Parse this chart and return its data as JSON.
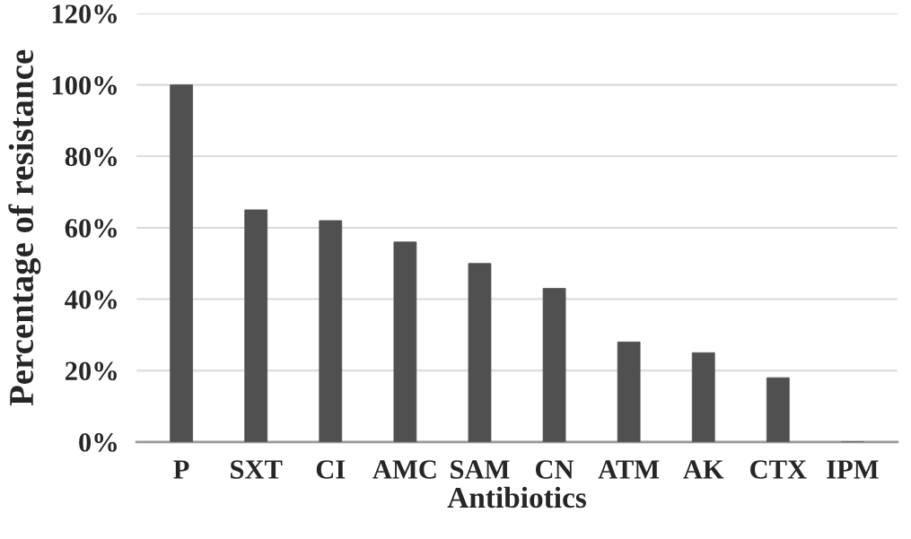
{
  "chart_data": {
    "type": "bar",
    "xlabel": "Antibiotics",
    "ylabel": "Percentage of resistance",
    "categories": [
      "P",
      "SXT",
      "CI",
      "AMC",
      "SAM",
      "CN",
      "ATM",
      "AK",
      "CTX",
      "IPM"
    ],
    "values": [
      100,
      65,
      62,
      56,
      50,
      43,
      28,
      25,
      18,
      0
    ],
    "color": "#505050",
    "ylim": [
      0,
      120
    ],
    "yticks": [
      {
        "value": 0,
        "label": "0%"
      },
      {
        "value": 20,
        "label": "20%"
      },
      {
        "value": 40,
        "label": "40%"
      },
      {
        "value": 60,
        "label": "60%"
      },
      {
        "value": 80,
        "label": "80%"
      },
      {
        "value": 100,
        "label": "100%"
      },
      {
        "value": 120,
        "label": "120%"
      }
    ],
    "grid": "y"
  }
}
